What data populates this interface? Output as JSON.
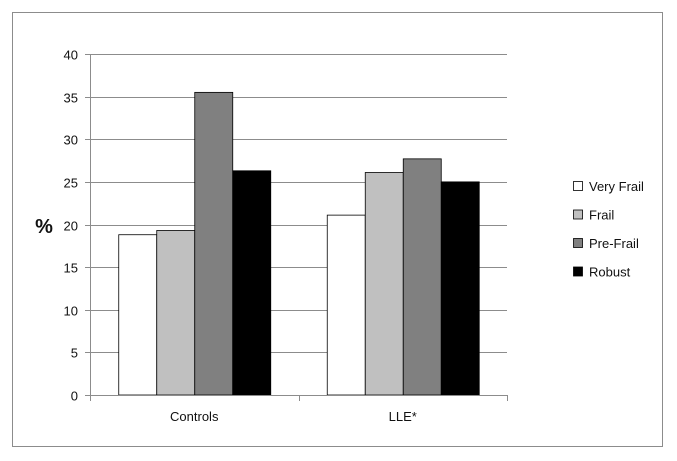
{
  "chart_data": {
    "type": "bar",
    "title": "",
    "xlabel": "",
    "ylabel": "%",
    "categories": [
      "Controls",
      "LLE*"
    ],
    "series": [
      {
        "name": "Very Frail",
        "values": [
          18.8,
          21.1
        ],
        "color": "#ffffff"
      },
      {
        "name": "Frail",
        "values": [
          19.3,
          26.1
        ],
        "color": "#c0c0c0"
      },
      {
        "name": "Pre-Frail",
        "values": [
          35.5,
          27.7
        ],
        "color": "#808080"
      },
      {
        "name": "Robust",
        "values": [
          26.3,
          25.0
        ],
        "color": "#000000"
      }
    ],
    "ylim": [
      0,
      40
    ],
    "yticks": [
      "0",
      "5",
      "10",
      "15",
      "20",
      "25",
      "30",
      "35",
      "40"
    ],
    "grid": true,
    "legend_position": "right"
  }
}
